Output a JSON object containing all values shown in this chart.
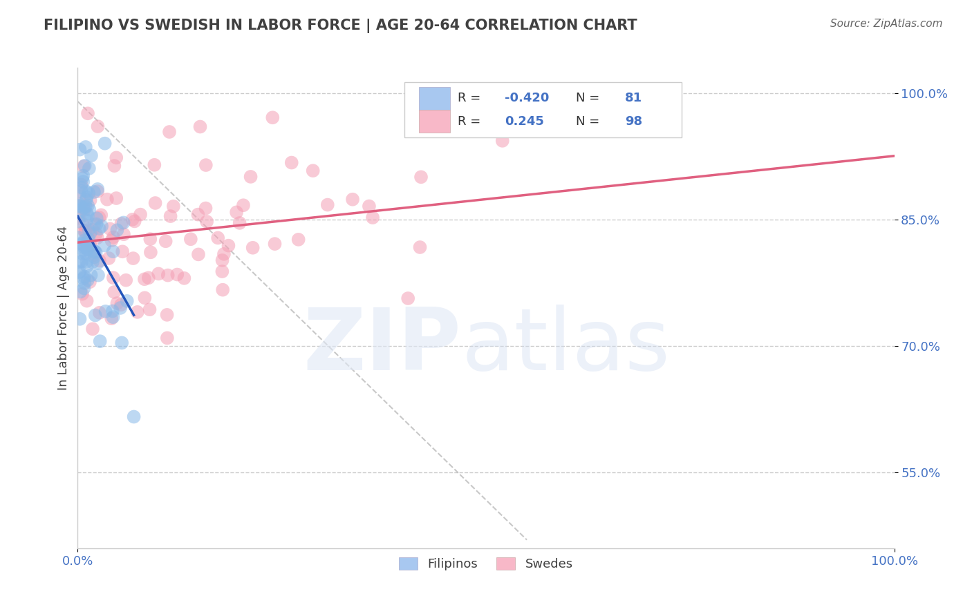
{
  "title": "FILIPINO VS SWEDISH IN LABOR FORCE | AGE 20-64 CORRELATION CHART",
  "source_text": "Source: ZipAtlas.com",
  "ylabel": "In Labor Force | Age 20-64",
  "xlim": [
    0.0,
    1.0
  ],
  "ylim": [
    0.46,
    1.03
  ],
  "xticklabels": [
    "0.0%",
    "100.0%"
  ],
  "ytick_positions": [
    0.55,
    0.7,
    0.85,
    1.0
  ],
  "ytick_labels": [
    "55.0%",
    "70.0%",
    "85.0%",
    "100.0%"
  ],
  "blue_color": "#88B8E8",
  "pink_color": "#F4A0B5",
  "blue_line_color": "#2255BB",
  "pink_line_color": "#E06080",
  "legend_blue_color": "#A8C8F0",
  "legend_pink_color": "#F8B8C8",
  "blue_R": -0.42,
  "blue_N": 81,
  "pink_R": 0.245,
  "pink_N": 98,
  "legend_text_color": "#4472C4",
  "title_color": "#404040",
  "blue_seed": 7,
  "pink_seed": 42
}
